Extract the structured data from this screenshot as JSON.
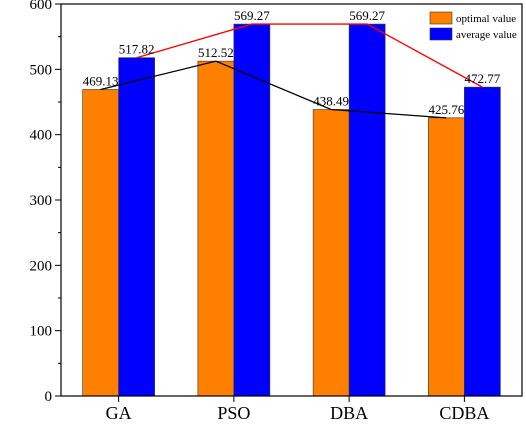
{
  "chart_data": {
    "type": "bar",
    "categories": [
      "GA",
      "PSO",
      "DBA",
      "CDBA"
    ],
    "series": [
      {
        "name": "optimal value",
        "values": [
          469.13,
          512.52,
          438.49,
          425.76
        ],
        "color": "#ff8000"
      },
      {
        "name": "average value",
        "values": [
          517.82,
          569.27,
          569.27,
          472.77
        ],
        "color": "#0000ff"
      }
    ],
    "overlay_lines": [
      {
        "series_index": 0,
        "color": "#000000"
      },
      {
        "series_index": 1,
        "color": "#ff0000"
      }
    ],
    "data_labels": [
      [
        "469.13",
        "512.52",
        "438.49",
        "425.76"
      ],
      [
        "517.82",
        "569.27",
        "569.27",
        "472.77"
      ]
    ],
    "y_ticks": [
      "0",
      "100",
      "200",
      "300",
      "400",
      "500",
      "600"
    ],
    "ylim": [
      0,
      600
    ],
    "legend_position": "top-right",
    "grid": false
  }
}
